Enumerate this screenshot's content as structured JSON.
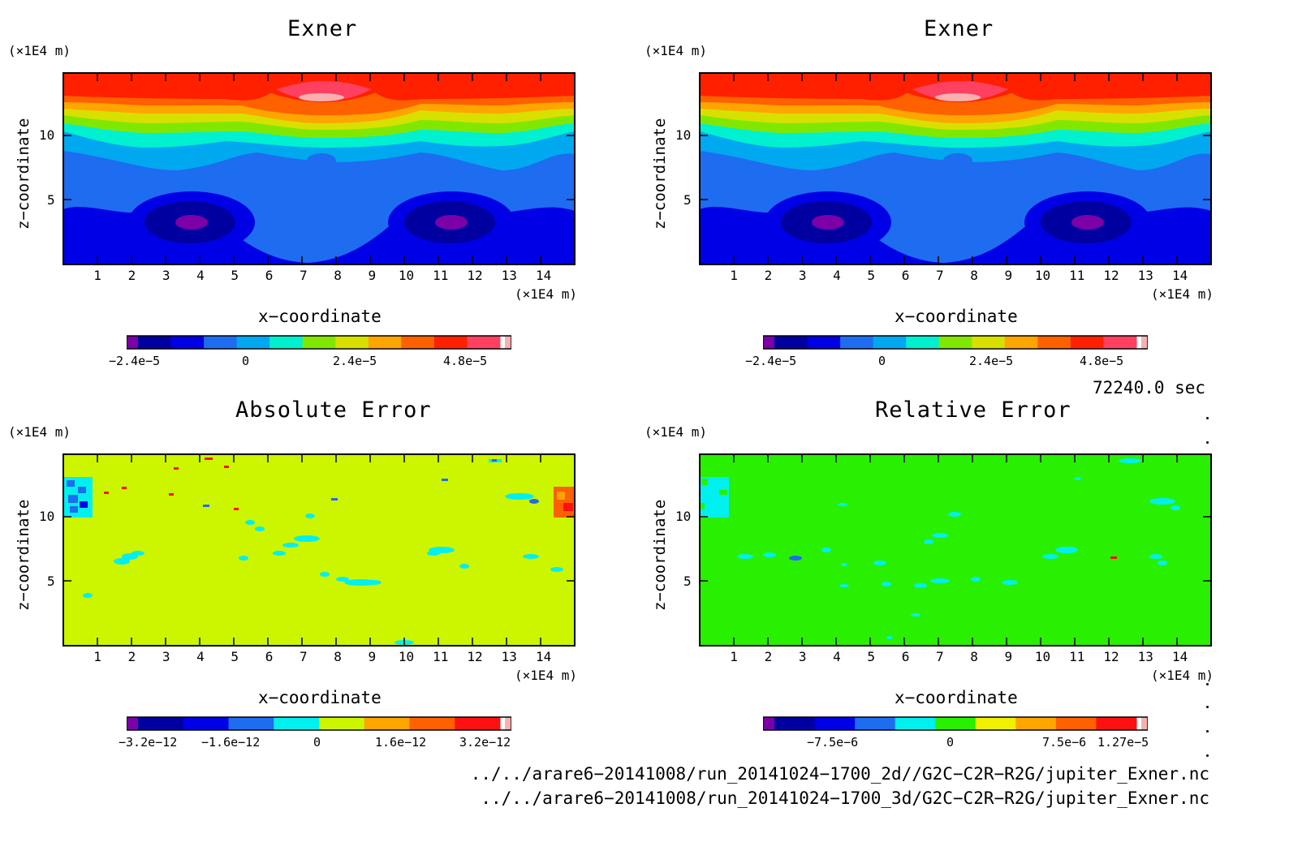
{
  "chart_data": [
    {
      "type": "heatmap",
      "title": "Exner",
      "xlabel": "x−coordinate",
      "ylabel": "z−coordinate",
      "x_unit": "(×1E4 m)",
      "y_unit": "(×1E4 m)",
      "x_ticks": [
        "1",
        "2",
        "3",
        "4",
        "5",
        "6",
        "7",
        "8",
        "9",
        "10",
        "11",
        "12",
        "13",
        "14"
      ],
      "y_ticks": [
        "5",
        "10"
      ],
      "xlim": [
        0,
        14.9
      ],
      "ylim": [
        0,
        14.5
      ],
      "colorbar": {
        "levels": 11,
        "colors": [
          "#7b00a8",
          "#0000a0",
          "#0000e6",
          "#1e6cf0",
          "#00a8f0",
          "#00f0d0",
          "#80e800",
          "#d8e000",
          "#ffa500",
          "#ff6000",
          "#ff2000",
          "#ff4060",
          "#f8b0b0"
        ],
        "tick_labels": [
          "−2.4e−5",
          "0",
          "2.4e−5",
          "4.8e−5"
        ]
      },
      "features": {
        "top_value": "high (red)",
        "bottom_value": "low (blue)",
        "minima": [
          {
            "x": 3.7,
            "z": 3.1
          },
          {
            "x": 11.4,
            "z": 3.1
          }
        ],
        "local_max_top": {
          "x": 7.6,
          "z": 12.9
        },
        "small_low_blob": {
          "x": 7.6,
          "z": 7.8
        }
      }
    },
    {
      "type": "heatmap",
      "title": "Exner",
      "xlabel": "x−coordinate",
      "ylabel": "z−coordinate",
      "x_unit": "(×1E4 m)",
      "y_unit": "(×1E4 m)",
      "x_ticks": [
        "1",
        "2",
        "3",
        "4",
        "5",
        "6",
        "7",
        "8",
        "9",
        "10",
        "11",
        "12",
        "13",
        "14"
      ],
      "y_ticks": [
        "5",
        "10"
      ],
      "xlim": [
        0,
        14.9
      ],
      "ylim": [
        0,
        14.5
      ],
      "colorbar": {
        "levels": 11,
        "colors": [
          "#7b00a8",
          "#0000a0",
          "#0000e6",
          "#1e6cf0",
          "#00a8f0",
          "#00f0d0",
          "#80e800",
          "#d8e000",
          "#ffa500",
          "#ff6000",
          "#ff2000",
          "#ff4060",
          "#f8b0b0"
        ],
        "tick_labels": [
          "−2.4e−5",
          "0",
          "2.4e−5",
          "4.8e−5"
        ]
      }
    },
    {
      "type": "heatmap",
      "title": "Absolute Error",
      "xlabel": "x−coordinate",
      "ylabel": "z−coordinate",
      "x_unit": "(×1E4 m)",
      "y_unit": "(×1E4 m)",
      "x_ticks": [
        "1",
        "2",
        "3",
        "4",
        "5",
        "6",
        "7",
        "8",
        "9",
        "10",
        "11",
        "12",
        "13",
        "14"
      ],
      "y_ticks": [
        "5",
        "10"
      ],
      "xlim": [
        0,
        14.9
      ],
      "ylim": [
        0,
        14.5
      ],
      "background_color": "#ccf500",
      "colorbar": {
        "colors": [
          "#7b00a8",
          "#0000a0",
          "#0000e6",
          "#1e6cf0",
          "#00f0f0",
          "#ccf500",
          "#ffa500",
          "#ff6000",
          "#ff1010",
          "#f8b0b0"
        ],
        "tick_labels": [
          "−3.2e−12",
          "−1.6e−12",
          "0",
          "1.6e−12",
          "3.2e−12"
        ]
      }
    },
    {
      "type": "heatmap",
      "title": "Relative Error",
      "xlabel": "x−coordinate",
      "ylabel": "z−coordinate",
      "x_unit": "(×1E4 m)",
      "y_unit": "(×1E4 m)",
      "x_ticks": [
        "1",
        "2",
        "3",
        "4",
        "5",
        "6",
        "7",
        "8",
        "9",
        "10",
        "11",
        "12",
        "13",
        "14"
      ],
      "y_ticks": [
        "5",
        "10"
      ],
      "xlim": [
        0,
        14.9
      ],
      "ylim": [
        0,
        14.5
      ],
      "background_color": "#28f000",
      "colorbar": {
        "colors": [
          "#7b00a8",
          "#0000a0",
          "#0000e6",
          "#1e6cf0",
          "#00f0f0",
          "#28f000",
          "#f0f000",
          "#ffa500",
          "#ff6000",
          "#ff1010",
          "#f8b0b0"
        ],
        "tick_labels": [
          "−7.5e−6",
          "0",
          "7.5e−6",
          "1.27e−5"
        ]
      }
    }
  ],
  "time_label": "72240.0 sec",
  "footer": {
    "line1": "../../arare6−20141008/run_20141024−1700_2d//G2C−C2R−R2G/jupiter_Exner.nc",
    "line2": "../../arare6−20141008/run_20141024−1700_3d/G2C−C2R−R2G/jupiter_Exner.nc"
  }
}
